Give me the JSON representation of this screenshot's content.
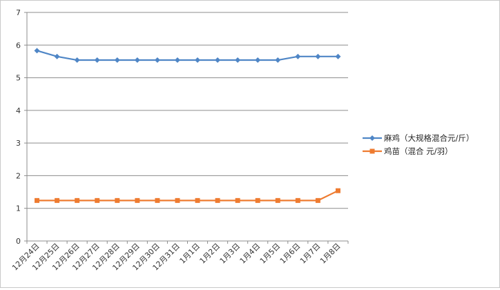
{
  "chart_data": {
    "type": "line",
    "categories": [
      "12月24日",
      "12月25日",
      "12月26日",
      "12月27日",
      "12月28日",
      "12月29日",
      "12月30日",
      "12月31日",
      "1月1日",
      "1月2日",
      "1月3日",
      "1月4日",
      "1月5日",
      "1月6日",
      "1月7日",
      "1月8日"
    ],
    "series": [
      {
        "name": "麻鸡（大规格混合元/斤）",
        "color": "#4f86c6",
        "marker": "diamond",
        "values": [
          5.83,
          5.65,
          5.54,
          5.54,
          5.54,
          5.54,
          5.54,
          5.54,
          5.54,
          5.54,
          5.54,
          5.54,
          5.54,
          5.65,
          5.65,
          5.65
        ]
      },
      {
        "name": "鸡苗（混合 元/羽）",
        "color": "#ee7b30",
        "marker": "square",
        "values": [
          1.24,
          1.24,
          1.24,
          1.24,
          1.24,
          1.24,
          1.24,
          1.24,
          1.24,
          1.24,
          1.24,
          1.24,
          1.24,
          1.24,
          1.24,
          1.54
        ]
      }
    ],
    "title": "",
    "xlabel": "",
    "ylabel": "",
    "ylim": [
      0,
      7
    ],
    "yticks": [
      "0",
      "1",
      "2",
      "3",
      "4",
      "5",
      "6",
      "7"
    ],
    "grid": true,
    "legend": "right"
  }
}
